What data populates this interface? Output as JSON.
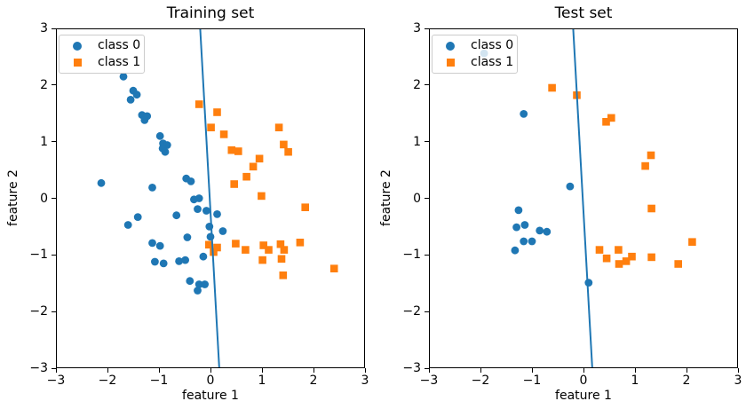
{
  "colors": {
    "class0": "#1f77b4",
    "class1": "#ff7f0e",
    "boundary_line": "#1f77b4",
    "spine": "#000000",
    "legend_border": "#cccccc"
  },
  "legend": {
    "items": [
      {
        "label": "class 0",
        "marker": "circle",
        "color": "#1f77b4"
      },
      {
        "label": "class 1",
        "marker": "square",
        "color": "#ff7f0e"
      }
    ]
  },
  "chart_data": [
    {
      "type": "scatter",
      "title": "Training set",
      "xlabel": "feature 1",
      "ylabel": "feature 2",
      "xlim": [
        -3,
        3
      ],
      "ylim": [
        -3,
        3
      ],
      "xticks": [
        -3,
        -2,
        -1,
        0,
        1,
        2,
        3
      ],
      "yticks": [
        -3,
        -2,
        -1,
        0,
        1,
        2,
        3
      ],
      "xtick_labels": [
        "−3",
        "−2",
        "−1",
        "0",
        "1",
        "2",
        "3"
      ],
      "ytick_labels": [
        "−3",
        "−2",
        "−1",
        "0",
        "1",
        "2",
        "3"
      ],
      "legend_position": "upper left",
      "series": [
        {
          "name": "class 0",
          "marker": "circle",
          "color": "#1f77b4",
          "points": [
            [
              -1.69,
              2.15
            ],
            [
              -1.5,
              1.9
            ],
            [
              -1.43,
              1.83
            ],
            [
              -1.55,
              1.74
            ],
            [
              -1.33,
              1.47
            ],
            [
              -1.23,
              1.45
            ],
            [
              -1.28,
              1.38
            ],
            [
              -0.98,
              1.1
            ],
            [
              -0.92,
              0.97
            ],
            [
              -0.84,
              0.94
            ],
            [
              -0.93,
              0.88
            ],
            [
              -0.88,
              0.82
            ],
            [
              -2.12,
              0.27
            ],
            [
              -1.13,
              0.19
            ],
            [
              -0.47,
              0.35
            ],
            [
              -0.38,
              0.3
            ],
            [
              -0.32,
              -0.02
            ],
            [
              -0.22,
              0.0
            ],
            [
              -0.25,
              -0.19
            ],
            [
              -0.08,
              -0.22
            ],
            [
              0.13,
              -0.28
            ],
            [
              -0.66,
              -0.3
            ],
            [
              -0.02,
              -0.5
            ],
            [
              0.24,
              -0.58
            ],
            [
              -0.45,
              -0.69
            ],
            [
              0.0,
              -0.68
            ],
            [
              -1.6,
              -0.47
            ],
            [
              -1.41,
              -0.33
            ],
            [
              -1.13,
              -0.79
            ],
            [
              -0.98,
              -0.84
            ],
            [
              -1.08,
              -1.12
            ],
            [
              -0.91,
              -1.15
            ],
            [
              -0.61,
              -1.11
            ],
            [
              -0.49,
              -1.09
            ],
            [
              -0.14,
              -1.03
            ],
            [
              -0.4,
              -1.46
            ],
            [
              -0.22,
              -1.52
            ],
            [
              -0.11,
              -1.52
            ],
            [
              -0.25,
              -1.63
            ]
          ]
        },
        {
          "name": "class 1",
          "marker": "square",
          "color": "#ff7f0e",
          "points": [
            [
              -0.22,
              1.66
            ],
            [
              0.13,
              1.52
            ],
            [
              0.01,
              1.25
            ],
            [
              0.26,
              1.13
            ],
            [
              0.41,
              0.85
            ],
            [
              0.54,
              0.83
            ],
            [
              1.33,
              1.25
            ],
            [
              1.42,
              0.95
            ],
            [
              1.51,
              0.82
            ],
            [
              0.95,
              0.7
            ],
            [
              0.83,
              0.56
            ],
            [
              0.7,
              0.38
            ],
            [
              0.46,
              0.25
            ],
            [
              0.99,
              0.04
            ],
            [
              1.84,
              -0.16
            ],
            [
              -0.03,
              -0.82
            ],
            [
              0.13,
              -0.87
            ],
            [
              0.06,
              -0.95
            ],
            [
              0.49,
              -0.8
            ],
            [
              0.68,
              -0.91
            ],
            [
              1.03,
              -0.83
            ],
            [
              1.13,
              -0.91
            ],
            [
              1.01,
              -1.09
            ],
            [
              1.36,
              -0.81
            ],
            [
              1.43,
              -0.91
            ],
            [
              1.38,
              -1.07
            ],
            [
              1.41,
              -1.36
            ],
            [
              1.74,
              -0.78
            ],
            [
              2.4,
              -1.24
            ]
          ]
        }
      ],
      "decision_boundary": {
        "color": "#1f77b4",
        "points": [
          [
            -0.2,
            3
          ],
          [
            0.17,
            -3
          ]
        ]
      }
    },
    {
      "type": "scatter",
      "title": "Test set",
      "xlabel": "feature 1",
      "ylabel": "feature 2",
      "xlim": [
        -3,
        3
      ],
      "ylim": [
        -3,
        3
      ],
      "xticks": [
        -3,
        -2,
        -1,
        0,
        1,
        2,
        3
      ],
      "yticks": [
        -3,
        -2,
        -1,
        0,
        1,
        2,
        3
      ],
      "xtick_labels": [
        "−3",
        "−2",
        "−1",
        "0",
        "1",
        "2",
        "3"
      ],
      "ytick_labels": [
        "−3",
        "−2",
        "−1",
        "0",
        "1",
        "2",
        "3"
      ],
      "legend_position": "upper left",
      "series": [
        {
          "name": "class 0",
          "marker": "circle",
          "color": "#1f77b4",
          "points": [
            [
              -1.93,
              2.56
            ],
            [
              -1.16,
              1.49
            ],
            [
              -0.26,
              0.21
            ],
            [
              -1.26,
              -0.21
            ],
            [
              -1.14,
              -0.47
            ],
            [
              -1.3,
              -0.51
            ],
            [
              -0.85,
              -0.57
            ],
            [
              -0.71,
              -0.59
            ],
            [
              -1.16,
              -0.76
            ],
            [
              -1.0,
              -0.76
            ],
            [
              -1.33,
              -0.92
            ],
            [
              0.1,
              -1.49
            ]
          ]
        },
        {
          "name": "class 1",
          "marker": "square",
          "color": "#ff7f0e",
          "points": [
            [
              -0.61,
              1.95
            ],
            [
              -0.13,
              1.82
            ],
            [
              0.44,
              1.35
            ],
            [
              0.54,
              1.42
            ],
            [
              1.31,
              0.76
            ],
            [
              1.2,
              0.57
            ],
            [
              1.32,
              -0.18
            ],
            [
              2.11,
              -0.77
            ],
            [
              0.31,
              -0.91
            ],
            [
              0.68,
              -0.91
            ],
            [
              0.45,
              -1.06
            ],
            [
              0.94,
              -1.03
            ],
            [
              0.83,
              -1.11
            ],
            [
              0.69,
              -1.16
            ],
            [
              1.32,
              -1.04
            ],
            [
              1.84,
              -1.16
            ]
          ]
        }
      ],
      "decision_boundary": {
        "color": "#1f77b4",
        "points": [
          [
            -0.2,
            3
          ],
          [
            0.17,
            -3
          ]
        ]
      }
    }
  ]
}
